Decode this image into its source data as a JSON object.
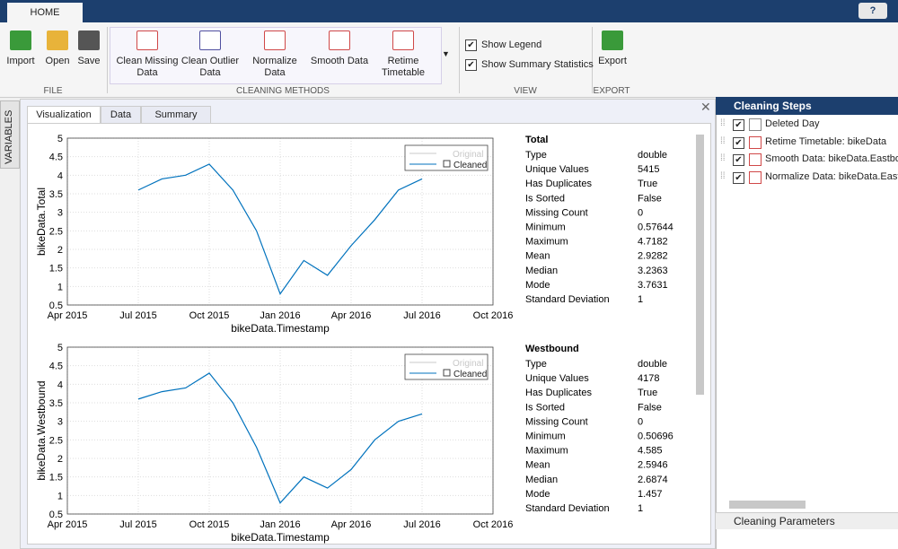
{
  "top_bar": {
    "tab": "HOME",
    "help": "?"
  },
  "toolbar": {
    "file": {
      "label": "FILE",
      "buttons": [
        "Import",
        "Open",
        "Save"
      ]
    },
    "cleaning_methods": {
      "label": "CLEANING METHODS",
      "buttons": [
        "Clean Missing Data",
        "Clean Outlier Data",
        "Normalize Data",
        "Smooth Data",
        "Retime Timetable"
      ]
    },
    "view": {
      "label": "VIEW",
      "options": [
        "Show Legend",
        "Show Summary Statistics"
      ]
    },
    "export": {
      "label": "EXPORT",
      "buttons": [
        "Export"
      ]
    }
  },
  "side_tab": "VARIABLES",
  "doc_tabs": [
    "Visualization",
    "Data",
    "Summary"
  ],
  "charts": [
    {
      "type": "line",
      "xlabel": "bikeData.Timestamp",
      "ylabel": "bikeData.Total",
      "grid": true,
      "x": [
        "2015-07",
        "2015-08",
        "2015-09",
        "2015-10",
        "2015-11",
        "2015-12",
        "2016-01",
        "2016-02",
        "2016-03",
        "2016-04",
        "2016-05",
        "2016-06",
        "2016-07"
      ],
      "series": [
        {
          "name": "Original",
          "color": "#c8c8c8",
          "shown": false
        },
        {
          "name": "Cleaned",
          "color": "#0072bd",
          "shown": true,
          "values": [
            3.6,
            3.9,
            4.0,
            4.3,
            3.6,
            2.5,
            0.8,
            1.7,
            1.3,
            2.1,
            2.8,
            3.6,
            3.9
          ]
        }
      ],
      "xlim": [
        "2015-04",
        "2016-10"
      ],
      "xticks": [
        {
          "value": "2015-04",
          "label": "Apr 2015"
        },
        {
          "value": "2015-07",
          "label": "Jul 2015"
        },
        {
          "value": "2015-10",
          "label": "Oct 2015"
        },
        {
          "value": "2016-01",
          "label": "Jan 2016"
        },
        {
          "value": "2016-04",
          "label": "Apr 2016"
        },
        {
          "value": "2016-07",
          "label": "Jul 2016"
        },
        {
          "value": "2016-10",
          "label": "Oct 2016"
        }
      ],
      "ylim": [
        0.5,
        5
      ],
      "yticks": [
        0.5,
        1,
        1.5,
        2,
        2.5,
        3,
        3.5,
        4,
        4.5,
        5
      ],
      "stats": {
        "title": "Total",
        "rows": [
          [
            "Type",
            "double"
          ],
          [
            "Unique Values",
            5415
          ],
          [
            "Has Duplicates",
            "True"
          ],
          [
            "Is Sorted",
            "False"
          ],
          [
            "Missing Count",
            0
          ],
          [
            "Minimum",
            0.57644
          ],
          [
            "Maximum",
            4.7182
          ],
          [
            "Mean",
            2.9282
          ],
          [
            "Median",
            3.2363
          ],
          [
            "Mode",
            3.7631
          ],
          [
            "Standard Deviation",
            1
          ]
        ]
      }
    },
    {
      "type": "line",
      "xlabel": "bikeData.Timestamp",
      "ylabel": "bikeData.Westbound",
      "grid": true,
      "x": [
        "2015-07",
        "2015-08",
        "2015-09",
        "2015-10",
        "2015-11",
        "2015-12",
        "2016-01",
        "2016-02",
        "2016-03",
        "2016-04",
        "2016-05",
        "2016-06",
        "2016-07"
      ],
      "series": [
        {
          "name": "Original",
          "color": "#c8c8c8",
          "shown": false
        },
        {
          "name": "Cleaned",
          "color": "#0072bd",
          "shown": true,
          "values": [
            3.6,
            3.8,
            3.9,
            4.3,
            3.5,
            2.3,
            0.8,
            1.5,
            1.2,
            1.7,
            2.5,
            3.0,
            3.2
          ]
        }
      ],
      "xlim": [
        "2015-04",
        "2016-10"
      ],
      "xticks": [
        {
          "value": "2015-04",
          "label": "Apr 2015"
        },
        {
          "value": "2015-07",
          "label": "Jul 2015"
        },
        {
          "value": "2015-10",
          "label": "Oct 2015"
        },
        {
          "value": "2016-01",
          "label": "Jan 2016"
        },
        {
          "value": "2016-04",
          "label": "Apr 2016"
        },
        {
          "value": "2016-07",
          "label": "Jul 2016"
        },
        {
          "value": "2016-10",
          "label": "Oct 2016"
        }
      ],
      "ylim": [
        0.5,
        5
      ],
      "yticks": [
        0.5,
        1,
        1.5,
        2,
        2.5,
        3,
        3.5,
        4,
        4.5,
        5
      ],
      "stats": {
        "title": "Westbound",
        "rows": [
          [
            "Type",
            "double"
          ],
          [
            "Unique Values",
            4178
          ],
          [
            "Has Duplicates",
            "True"
          ],
          [
            "Is Sorted",
            "False"
          ],
          [
            "Missing Count",
            0
          ],
          [
            "Minimum",
            0.50696
          ],
          [
            "Maximum",
            4.585
          ],
          [
            "Mean",
            2.5946
          ],
          [
            "Median",
            2.6874
          ],
          [
            "Mode",
            1.457
          ],
          [
            "Standard Deviation",
            1
          ]
        ]
      }
    }
  ],
  "cleaning_steps": {
    "title": "Cleaning Steps",
    "steps": [
      "Deleted Day",
      "Retime Timetable: bikeData",
      "Smooth Data: bikeData.Eastbo",
      "Normalize Data: bikeData.East"
    ]
  },
  "cleaning_parameters": "Cleaning Parameters"
}
